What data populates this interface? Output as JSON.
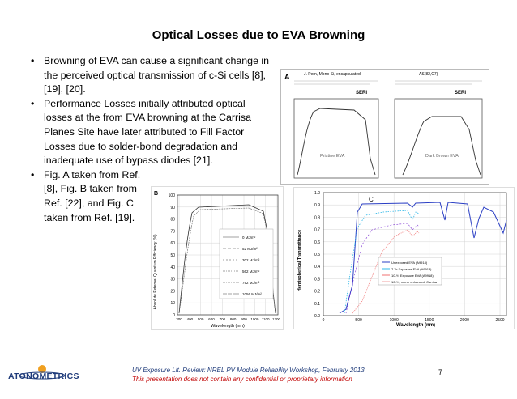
{
  "title": "Optical Losses due to EVA Browning",
  "bullets": [
    "Browning of EVA can cause a significant change in the perceived optical transmission of c-Si cells [8], [19], [20].",
    "Performance Losses initially attributed optical losses at the from EVA browning at the Carrisa Planes Site have later attributed to Fill Factor Losses due to solder-bond degradation and inadequate use of bypass diodes [21].",
    "Fig. A taken from Ref. [8], Fig. B taken from Ref. [22], and Fig. C taken from Ref. [19]."
  ],
  "figA": {
    "letter": "A",
    "heading": "J. Pern, Mono-Si, encapsulated",
    "heading_right": "AS(82,C7)",
    "left_label": "Pristine EVA",
    "right_label": "Dark Brown EVA",
    "seri": "SERI"
  },
  "figB": {
    "letter": "B",
    "ylabel": "Absolute External Quantum Efficiency (%)",
    "xlabel": "Wavelength (nm)",
    "yticks": [
      "100",
      "90",
      "80",
      "70",
      "60",
      "50",
      "40",
      "30",
      "20",
      "10",
      "0"
    ],
    "xticks": [
      "300",
      "400",
      "500",
      "600",
      "700",
      "800",
      "900",
      "1000",
      "1100",
      "1200"
    ],
    "legend": [
      "0 MJ/m²",
      "52 MJ/m²",
      "302 MJ/m²",
      "562 MJ/m²",
      "792 MJ/m²",
      "1056 MJ/m²"
    ]
  },
  "figC": {
    "letter": "C",
    "ylabel": "Hemispherical Transmittance",
    "xlabel": "Wavelength (nm)",
    "yticks": [
      "1.0",
      "0.9",
      "0.8",
      "0.7",
      "0.6",
      "0.5",
      "0.4",
      "0.3",
      "0.2",
      "0.1",
      "0.0"
    ],
    "xticks": [
      "0",
      "500",
      "1000",
      "1500",
      "2000",
      "2500"
    ],
    "legend": [
      "Unexposed EVA (A9918)",
      "7-Yr Exposure EVA (A9918)",
      "10-Yr Exposure EVA (A9918)",
      "10-Yr, mirror enhanced, Carrisa"
    ],
    "colors": [
      "#2b3fc4",
      "#2fb8e8",
      "#f07070",
      "#f0a0a0"
    ]
  },
  "footer": {
    "line1": "UV Exposure Lit. Review: NREL PV Module Reliability Workshop, February 2013",
    "line2": "This presentation does not contain any confidential or proprietary information"
  },
  "page_number": "7",
  "logo": "ATONOMETRICS"
}
